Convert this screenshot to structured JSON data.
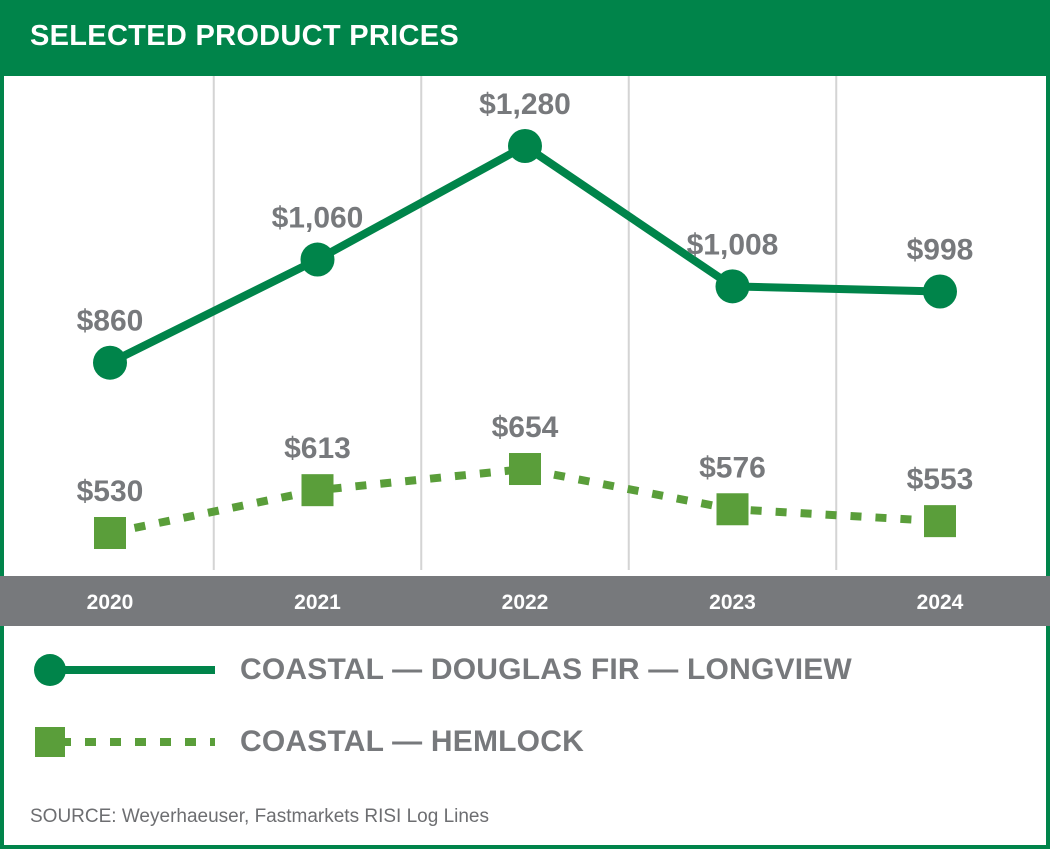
{
  "header": {
    "title": "SELECTED PRODUCT PRICES"
  },
  "chart_data": {
    "type": "line",
    "categories": [
      "2020",
      "2021",
      "2022",
      "2023",
      "2024"
    ],
    "series": [
      {
        "name": "COASTAL — DOUGLAS FIR — LONGVIEW",
        "values": [
          860,
          1060,
          1280,
          1008,
          998
        ],
        "labels": [
          "$860",
          "$1,060",
          "$1,280",
          "$1,008",
          "$998"
        ],
        "color": "#00844a",
        "marker": "circle",
        "line": "solid"
      },
      {
        "name": "COASTAL — HEMLOCK",
        "values": [
          530,
          613,
          654,
          576,
          553
        ],
        "labels": [
          "$530",
          "$613",
          "$654",
          "$576",
          "$553"
        ],
        "color": "#5a9e3a",
        "marker": "square",
        "line": "dotted"
      }
    ],
    "ylim": [
      400,
      1350
    ],
    "grid": "vertical",
    "legend_position": "bottom"
  },
  "source": "SOURCE: Weyerhaeuser, Fastmarkets RISI Log Lines",
  "colors": {
    "brand": "#00844a",
    "secondary": "#5a9e3a",
    "axis_band": "#77797c",
    "text_gray": "#77797c",
    "grid": "#d4d4d4"
  }
}
